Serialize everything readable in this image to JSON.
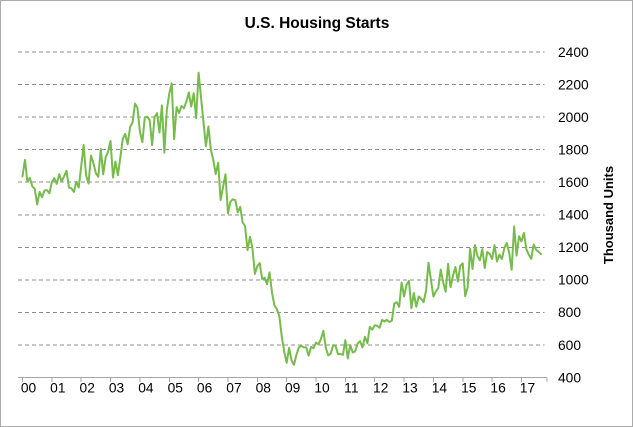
{
  "chart_data": {
    "type": "line",
    "title": "U.S. Housing Starts",
    "xlabel": "",
    "ylabel": "Thousand Units",
    "ylim": [
      400,
      2400
    ],
    "y_ticks": [
      400,
      600,
      800,
      1000,
      1200,
      1400,
      1600,
      1800,
      2000,
      2200,
      2400
    ],
    "x_tick_labels": [
      "00",
      "01",
      "02",
      "03",
      "04",
      "05",
      "06",
      "07",
      "08",
      "09",
      "10",
      "11",
      "12",
      "13",
      "14",
      "15",
      "16",
      "17"
    ],
    "points_per_year": 12,
    "grid": "horizontal-dashed",
    "legend_position": "none",
    "axis_labels_side": "right",
    "series": [
      {
        "name": "U.S. Housing Starts",
        "color": "#76BB4C",
        "values": [
          1636,
          1737,
          1604,
          1626,
          1575,
          1559,
          1463,
          1541,
          1507,
          1549,
          1551,
          1532,
          1600,
          1625,
          1590,
          1649,
          1605,
          1636,
          1670,
          1567,
          1562,
          1540,
          1602,
          1568,
          1698,
          1829,
          1642,
          1592,
          1764,
          1717,
          1655,
          1633,
          1804,
          1648,
          1753,
          1788,
          1853,
          1629,
          1726,
          1643,
          1751,
          1867,
          1897,
          1833,
          1939,
          1967,
          2083,
          2057,
          1911,
          1846,
          1998,
          2003,
          1981,
          1828,
          2002,
          2024,
          1905,
          2072,
          1782,
          2042,
          2144,
          2207,
          1864,
          2061,
          2025,
          2068,
          2054,
          2095,
          2151,
          2065,
          2147,
          1994,
          2273,
          2119,
          1969,
          1821,
          1942,
          1802,
          1737,
          1650,
          1720,
          1491,
          1570,
          1649,
          1409,
          1480,
          1495,
          1490,
          1415,
          1448,
          1354,
          1330,
          1183,
          1264,
          1197,
          1037,
          1084,
          1103,
          1005,
          1013,
          973,
          1046,
          923,
          844,
          820,
          777,
          652,
          560,
          490,
          582,
          505,
          478,
          540,
          585,
          594,
          586,
          585,
          534,
          588,
          581,
          614,
          604,
          636,
          687,
          583,
          536,
          546,
          599,
          594,
          543,
          545,
          539,
          630,
          517,
          600,
          554,
          561,
          608,
          623,
          585,
          650,
          610,
          711,
          694,
          720,
          718,
          706,
          754,
          744,
          754,
          741,
          749,
          854,
          863,
          834,
          983,
          898,
          969,
          994,
          826,
          919,
          835,
          898,
          883,
          863,
          936,
          1105,
          999,
          897,
          928,
          950,
          1063,
          984,
          927,
          1098,
          955,
          1026,
          1079,
          990,
          1087,
          1101,
          900,
          954,
          1190,
          1067,
          1213,
          1147,
          1120,
          1189,
          1073,
          1171,
          1160,
          1128,
          1213,
          1113,
          1155,
          1128,
          1195,
          1226,
          1164,
          1062,
          1328,
          1149,
          1268,
          1236,
          1288,
          1189,
          1154,
          1129,
          1217,
          1185,
          1172,
          1158
        ]
      }
    ],
    "colors": {
      "line": "#76BB4C",
      "gridline": "#8C8C8C",
      "axis": "#A6A6A6",
      "text": "#000000",
      "border": "#ABABAB",
      "background": "#FFFFFF"
    }
  }
}
